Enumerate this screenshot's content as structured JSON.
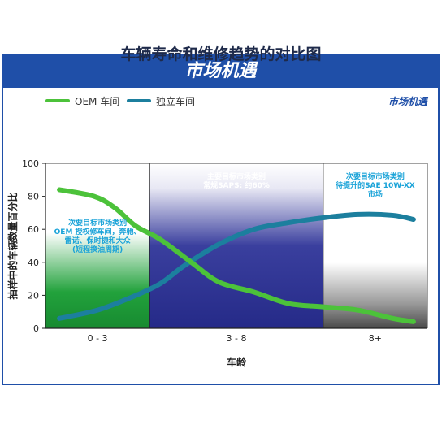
{
  "banner": {
    "title": "市场机遇"
  },
  "legend": {
    "market_label": "市场机遇"
  },
  "zones": [
    {
      "lines": [
        "次要目标市场类别",
        "OEM 授权修车间，奔驰、",
        "雷诺、保时捷和大众",
        "(短程换油周期)"
      ],
      "color": "#1aa3d8"
    },
    {
      "lines": [
        "主要目标市场类别",
        "常规SAPS: 约60%"
      ],
      "color": "#ffffff"
    },
    {
      "lines": [
        "次要目标市场类别",
        "待提升的SAE 10W-XX",
        "市场"
      ],
      "color": "#1aa3d8"
    }
  ],
  "colors": {
    "brand_blue": "#1f4fa8",
    "oem_green": "#4cc23a",
    "independent_teal": "#1c7f9e",
    "zone1_green": "#1e9a3a",
    "zone2_navy": "#2a3090"
  },
  "chart_data": {
    "type": "line",
    "title": "车辆寿命和维修趋势的对比图",
    "xlabel": "车龄",
    "ylabel": "抽样中的车辆数量百分比",
    "categories": [
      "0 - 3",
      "3 - 8",
      "8+"
    ],
    "x_range": [
      0,
      11
    ],
    "ylim": [
      0,
      100
    ],
    "yticks": [
      0,
      20,
      40,
      60,
      80,
      100
    ],
    "grid": false,
    "legend_position": "top-left",
    "series": [
      {
        "name": "OEM 车间",
        "color": "#4cc23a",
        "points": [
          [
            0.4,
            84
          ],
          [
            1.4,
            80
          ],
          [
            2.0,
            73
          ],
          [
            2.6,
            62
          ],
          [
            3.3,
            54
          ],
          [
            4.2,
            40
          ],
          [
            5.0,
            28
          ],
          [
            6.0,
            22
          ],
          [
            7.0,
            15
          ],
          [
            8.0,
            13
          ],
          [
            9.0,
            11
          ],
          [
            10.0,
            6
          ],
          [
            10.6,
            4
          ]
        ]
      },
      {
        "name": "独立车间",
        "color": "#1c7f9e",
        "points": [
          [
            0.4,
            6
          ],
          [
            1.5,
            11
          ],
          [
            2.5,
            19
          ],
          [
            3.3,
            27
          ],
          [
            4.0,
            38
          ],
          [
            5.0,
            51
          ],
          [
            6.0,
            60
          ],
          [
            7.0,
            64
          ],
          [
            8.0,
            67
          ],
          [
            9.0,
            69
          ],
          [
            10.0,
            68.5
          ],
          [
            10.6,
            66
          ]
        ]
      }
    ]
  }
}
